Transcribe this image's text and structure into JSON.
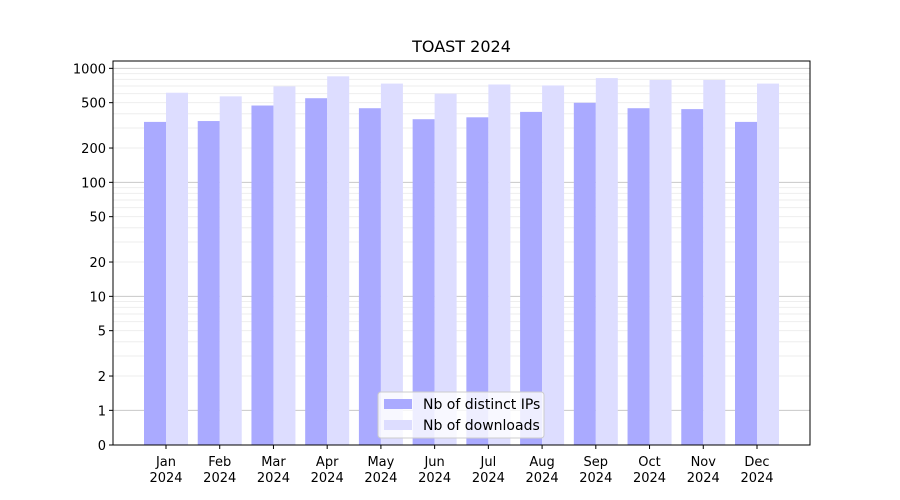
{
  "chart_data": {
    "type": "bar",
    "title": "TOAST 2024",
    "xlabel": "",
    "ylabel": "",
    "yscale": "symlog",
    "ylim": [
      0,
      1160
    ],
    "grid": true,
    "legend_position": "bottom-center",
    "categories": [
      [
        "Jan",
        "2024"
      ],
      [
        "Feb",
        "2024"
      ],
      [
        "Mar",
        "2024"
      ],
      [
        "Apr",
        "2024"
      ],
      [
        "May",
        "2024"
      ],
      [
        "Jun",
        "2024"
      ],
      [
        "Jul",
        "2024"
      ],
      [
        "Aug",
        "2024"
      ],
      [
        "Sep",
        "2024"
      ],
      [
        "Oct",
        "2024"
      ],
      [
        "Nov",
        "2024"
      ],
      [
        "Dec",
        "2024"
      ]
    ],
    "yticks": [
      0,
      1,
      2,
      5,
      10,
      20,
      50,
      100,
      200,
      500,
      1000
    ],
    "ytick_labels": [
      "0",
      "1",
      "2",
      "5",
      "10",
      "20",
      "50",
      "100",
      "200",
      "500",
      "1000"
    ],
    "series": [
      {
        "name": "Nb of distinct IPs",
        "color": "#aaaaff",
        "values": [
          339,
          345,
          472,
          547,
          447,
          358,
          372,
          415,
          499,
          447,
          439,
          339
        ]
      },
      {
        "name": "Nb of downloads",
        "color": "#ddddff",
        "values": [
          611,
          568,
          695,
          851,
          735,
          600,
          722,
          708,
          821,
          791,
          791,
          735
        ]
      }
    ]
  }
}
